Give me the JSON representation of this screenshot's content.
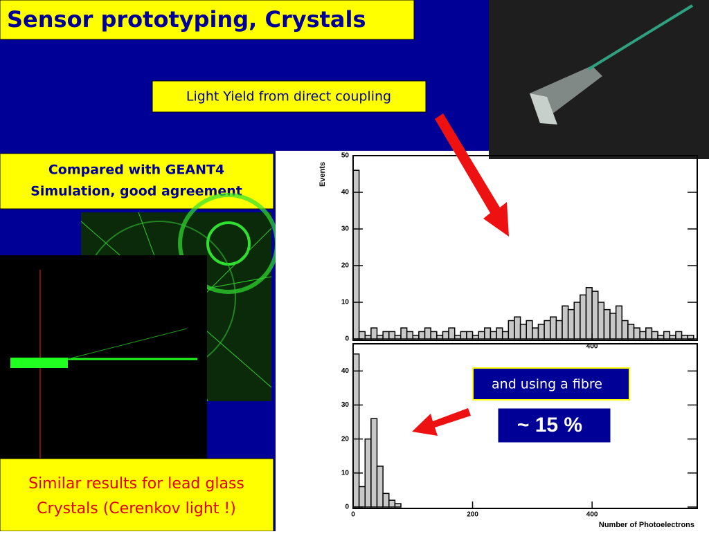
{
  "slide": {
    "title": "Sensor prototyping, Crystals",
    "subtitle": "Light Yield from direct coupling",
    "note_top": [
      "Compared with GEANT4",
      "Simulation, good agreement"
    ],
    "note_bottom": [
      "Similar results for lead glass",
      "Crystals (Cerenkov light !)"
    ],
    "fibre_label": "and using a fibre",
    "fibre_ratio": "~ 15 %"
  },
  "chart_data": [
    {
      "type": "histogram",
      "ylabel": "Events",
      "bins": [
        0,
        10,
        20,
        30,
        40,
        50,
        60,
        70,
        80,
        90,
        100,
        110,
        120,
        130,
        140,
        150,
        160,
        170,
        180,
        190,
        200,
        210,
        220,
        230,
        240,
        250,
        260,
        270,
        280,
        290,
        300,
        310,
        320,
        330,
        340,
        350,
        360,
        370,
        380,
        390,
        400,
        410,
        420,
        430,
        440,
        450,
        460,
        470,
        480,
        490,
        500,
        510,
        520,
        530,
        540,
        550,
        560,
        570,
        580
      ],
      "values": [
        46,
        2,
        1,
        3,
        1,
        2,
        2,
        1,
        3,
        2,
        1,
        2,
        3,
        2,
        1,
        2,
        3,
        1,
        2,
        2,
        1,
        2,
        3,
        2,
        3,
        2,
        5,
        6,
        4,
        5,
        3,
        4,
        5,
        6,
        5,
        9,
        8,
        10,
        12,
        14,
        13,
        10,
        8,
        7,
        9,
        5,
        4,
        3,
        2,
        3,
        2,
        1,
        2,
        1,
        2,
        1,
        1,
        0
      ],
      "color": "#c8c8c8",
      "xlim": [
        0,
        576
      ],
      "ylim": [
        0,
        50
      ],
      "yticks": [
        0,
        10,
        20,
        30,
        40,
        50
      ],
      "xticks": [
        400
      ]
    },
    {
      "type": "histogram",
      "xlabel": "Number of Photoelectrons",
      "bins": [
        0,
        10,
        20,
        30,
        40,
        50,
        60,
        70,
        80,
        90,
        100,
        110,
        120,
        130,
        140,
        150,
        160,
        170,
        180,
        190,
        200,
        210,
        220,
        230,
        240,
        250,
        260,
        270,
        280,
        290,
        300,
        310,
        320,
        330,
        340,
        350,
        360,
        370,
        380,
        390,
        400,
        410,
        420,
        430,
        440,
        450,
        460,
        470,
        480,
        490,
        500,
        510,
        520,
        530,
        540,
        550,
        560,
        570,
        580
      ],
      "values": [
        45,
        6,
        20,
        26,
        12,
        4,
        2,
        1,
        0,
        0,
        0,
        0,
        0,
        0,
        0,
        0,
        0,
        0,
        0,
        0,
        0,
        0,
        0,
        0,
        0,
        0,
        0,
        0,
        0,
        0,
        0,
        0,
        0,
        0,
        0,
        0,
        0,
        0,
        0,
        0,
        0,
        0,
        0,
        0,
        0,
        0,
        0,
        0,
        0,
        0,
        0,
        0,
        0,
        0,
        0,
        0,
        0,
        0
      ],
      "color": "#c8c8c8",
      "xlim": [
        0,
        576
      ],
      "ylim": [
        0,
        48
      ],
      "yticks": [
        0,
        10,
        20,
        30,
        40
      ],
      "xticks": [
        0,
        200,
        400
      ]
    }
  ]
}
